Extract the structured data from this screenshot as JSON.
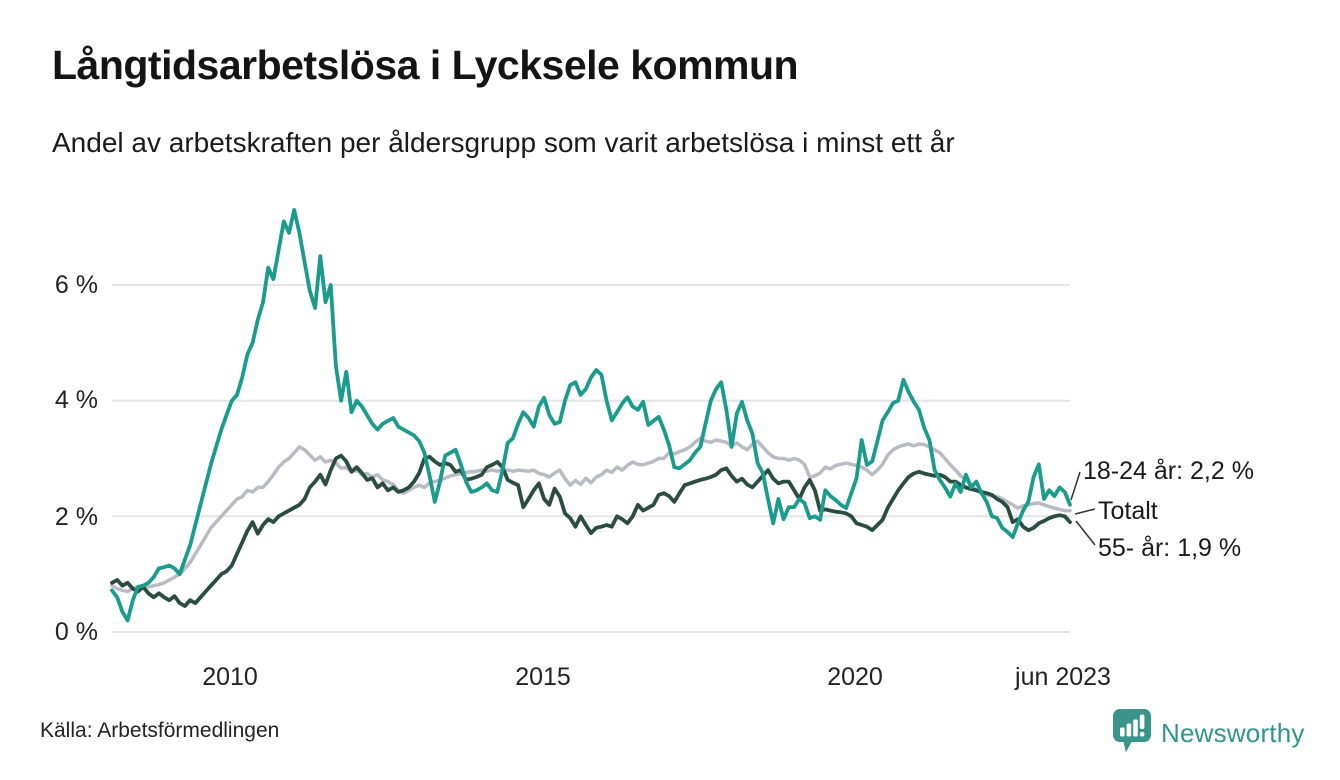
{
  "header": {
    "title": "Långtidsarbetslösa i Lycksele kommun",
    "subtitle": "Andel av arbetskraften per åldersgrupp som varit arbetslösa i minst ett år"
  },
  "source": {
    "label": "Källa: Arbetsförmedlingen"
  },
  "branding": {
    "name": "Newsworthy",
    "icon_color": "#3a948c",
    "text_color": "#2f958c"
  },
  "chart_data": {
    "type": "line",
    "title": "Långtidsarbetslösa i Lycksele kommun",
    "subtitle": "Andel av arbetskraften per åldersgrupp som varit arbetslösa i minst ett år",
    "x_unit": "month",
    "x_start": "2008-02",
    "x_end": "2023-06",
    "ylabel": "",
    "ylim": [
      0,
      7.5
    ],
    "grid": "horizontal",
    "legend_position": "end-of-line-labels",
    "xticks": [
      {
        "label": "2010"
      },
      {
        "label": "2015"
      },
      {
        "label": "2020"
      },
      {
        "label": "jun 2023"
      }
    ],
    "yticks": [
      {
        "label": "6 %",
        "value": 6
      },
      {
        "label": "4 %",
        "value": 4
      },
      {
        "label": "2 %",
        "value": 2
      },
      {
        "label": "0 %",
        "value": 0
      }
    ],
    "annotations": [
      {
        "text": "18-24 år: 2,2 %"
      },
      {
        "text": "Totalt"
      },
      {
        "text": "55- år: 1,9 %"
      }
    ],
    "series": [
      {
        "id": "totalt",
        "name": "Totalt",
        "color": "#b9bac3",
        "end_value_pct": 2.1,
        "values": [
          0.8,
          0.75,
          0.72,
          0.7,
          0.75,
          0.78,
          0.8,
          0.78,
          0.8,
          0.82,
          0.85,
          0.9,
          0.95,
          1.0,
          1.1,
          1.2,
          1.35,
          1.5,
          1.65,
          1.8,
          1.9,
          2.0,
          2.1,
          2.2,
          2.3,
          2.34,
          2.45,
          2.42,
          2.5,
          2.5,
          2.6,
          2.72,
          2.85,
          2.94,
          3.0,
          3.1,
          3.2,
          3.15,
          3.06,
          2.97,
          3.03,
          2.94,
          2.97,
          2.92,
          2.83,
          2.85,
          2.77,
          2.8,
          2.72,
          2.74,
          2.68,
          2.72,
          2.63,
          2.6,
          2.55,
          2.45,
          2.4,
          2.45,
          2.5,
          2.54,
          2.5,
          2.58,
          2.6,
          2.63,
          2.66,
          2.7,
          2.72,
          2.74,
          2.76,
          2.77,
          2.78,
          2.8,
          2.78,
          2.8,
          2.78,
          2.8,
          2.8,
          2.78,
          2.8,
          2.79,
          2.78,
          2.8,
          2.74,
          2.72,
          2.68,
          2.75,
          2.8,
          2.65,
          2.54,
          2.62,
          2.55,
          2.66,
          2.58,
          2.68,
          2.72,
          2.8,
          2.76,
          2.85,
          2.8,
          2.88,
          2.94,
          2.9,
          2.89,
          2.92,
          2.95,
          3.0,
          3.0,
          3.1,
          3.08,
          3.12,
          3.15,
          3.2,
          3.28,
          3.35,
          3.3,
          3.28,
          3.32,
          3.3,
          3.28,
          3.22,
          3.27,
          3.2,
          3.15,
          3.25,
          3.3,
          3.2,
          3.1,
          3.03,
          3.0,
          3.0,
          2.97,
          3.0,
          2.97,
          2.9,
          2.68,
          2.7,
          2.75,
          2.85,
          2.82,
          2.88,
          2.9,
          2.92,
          2.9,
          2.88,
          2.85,
          2.8,
          2.72,
          2.8,
          2.9,
          3.06,
          3.15,
          3.2,
          3.23,
          3.25,
          3.22,
          3.25,
          3.24,
          3.2,
          3.15,
          3.1,
          3.0,
          2.89,
          2.8,
          2.7,
          2.63,
          2.55,
          2.45,
          2.4,
          2.37,
          2.35,
          2.34,
          2.3,
          2.25,
          2.2,
          2.14,
          2.18,
          2.2,
          2.22,
          2.23,
          2.2,
          2.17,
          2.14,
          2.12,
          2.1,
          2.1
        ]
      },
      {
        "id": "55",
        "name": "55- år",
        "color": "#2b4c41",
        "end_value_pct": 1.9,
        "values": [
          0.85,
          0.9,
          0.8,
          0.85,
          0.75,
          0.7,
          0.78,
          0.67,
          0.6,
          0.67,
          0.6,
          0.55,
          0.62,
          0.5,
          0.45,
          0.55,
          0.5,
          0.6,
          0.7,
          0.8,
          0.9,
          1.0,
          1.05,
          1.15,
          1.35,
          1.55,
          1.75,
          1.9,
          1.7,
          1.85,
          1.95,
          1.9,
          2.0,
          2.05,
          2.1,
          2.15,
          2.2,
          2.3,
          2.5,
          2.6,
          2.72,
          2.55,
          2.8,
          3.0,
          3.05,
          2.95,
          2.77,
          2.85,
          2.75,
          2.63,
          2.66,
          2.5,
          2.57,
          2.45,
          2.5,
          2.42,
          2.45,
          2.5,
          2.6,
          2.75,
          3.0,
          3.03,
          2.95,
          2.89,
          2.92,
          2.89,
          2.77,
          2.8,
          2.63,
          2.65,
          2.68,
          2.72,
          2.85,
          2.89,
          2.94,
          2.85,
          2.63,
          2.58,
          2.54,
          2.16,
          2.3,
          2.45,
          2.57,
          2.3,
          2.2,
          2.48,
          2.34,
          2.05,
          1.97,
          1.82,
          2.0,
          1.85,
          1.71,
          1.8,
          1.82,
          1.85,
          1.82,
          2.0,
          1.95,
          1.88,
          2.0,
          2.2,
          2.1,
          2.15,
          2.2,
          2.37,
          2.4,
          2.35,
          2.25,
          2.4,
          2.54,
          2.57,
          2.6,
          2.63,
          2.65,
          2.68,
          2.72,
          2.8,
          2.83,
          2.7,
          2.6,
          2.65,
          2.55,
          2.5,
          2.6,
          2.7,
          2.8,
          2.65,
          2.57,
          2.6,
          2.6,
          2.45,
          2.3,
          2.5,
          2.63,
          2.45,
          2.1,
          2.12,
          2.1,
          2.08,
          2.07,
          2.05,
          2.0,
          1.88,
          1.85,
          1.82,
          1.76,
          1.85,
          1.94,
          2.15,
          2.3,
          2.45,
          2.57,
          2.68,
          2.74,
          2.77,
          2.74,
          2.72,
          2.7,
          2.72,
          2.68,
          2.6,
          2.6,
          2.54,
          2.5,
          2.47,
          2.45,
          2.42,
          2.4,
          2.37,
          2.3,
          2.25,
          2.16,
          1.9,
          1.95,
          1.82,
          1.76,
          1.8,
          1.88,
          1.92,
          1.97,
          2.0,
          2.02,
          2.0,
          1.9
        ]
      },
      {
        "id": "18-24",
        "name": "18-24 år",
        "color": "#1a9c8c",
        "end_value_pct": 2.2,
        "values": [
          0.72,
          0.6,
          0.35,
          0.2,
          0.55,
          0.78,
          0.8,
          0.85,
          0.95,
          1.1,
          1.12,
          1.15,
          1.1,
          1.0,
          1.25,
          1.5,
          1.85,
          2.2,
          2.55,
          2.9,
          3.2,
          3.5,
          3.75,
          4.0,
          4.1,
          4.4,
          4.8,
          5.0,
          5.4,
          5.7,
          6.3,
          6.1,
          6.6,
          7.1,
          6.9,
          7.3,
          6.9,
          6.4,
          5.9,
          5.6,
          6.5,
          5.7,
          6.0,
          4.6,
          4.0,
          4.5,
          3.8,
          4.0,
          3.9,
          3.75,
          3.6,
          3.5,
          3.6,
          3.65,
          3.7,
          3.55,
          3.5,
          3.45,
          3.4,
          3.3,
          3.1,
          2.7,
          2.25,
          2.6,
          3.05,
          3.1,
          3.15,
          2.9,
          2.6,
          2.42,
          2.45,
          2.5,
          2.57,
          2.45,
          2.42,
          2.8,
          3.27,
          3.35,
          3.6,
          3.8,
          3.7,
          3.55,
          3.9,
          4.05,
          3.75,
          3.6,
          3.63,
          4.0,
          4.27,
          4.32,
          4.1,
          4.2,
          4.4,
          4.53,
          4.45,
          4.0,
          3.66,
          3.8,
          3.95,
          4.06,
          3.9,
          3.84,
          3.98,
          3.58,
          3.65,
          3.72,
          3.5,
          3.23,
          2.85,
          2.83,
          2.9,
          2.97,
          3.1,
          3.2,
          3.6,
          4.0,
          4.2,
          4.32,
          3.84,
          3.2,
          3.78,
          3.98,
          3.66,
          3.43,
          2.92,
          2.75,
          2.3,
          1.88,
          2.3,
          1.95,
          2.16,
          2.16,
          2.3,
          2.23,
          1.97,
          2.0,
          1.94,
          2.45,
          2.35,
          2.28,
          2.2,
          2.14,
          2.4,
          2.66,
          3.32,
          2.89,
          2.95,
          3.3,
          3.66,
          3.8,
          3.96,
          4.0,
          4.36,
          4.15,
          3.98,
          3.84,
          3.53,
          3.32,
          2.8,
          2.63,
          2.5,
          2.34,
          2.57,
          2.42,
          2.72,
          2.5,
          2.6,
          2.4,
          2.25,
          2.0,
          1.97,
          1.8,
          1.73,
          1.64,
          1.88,
          2.1,
          2.25,
          2.68,
          2.9,
          2.3,
          2.45,
          2.35,
          2.5,
          2.42,
          2.2
        ]
      }
    ]
  }
}
